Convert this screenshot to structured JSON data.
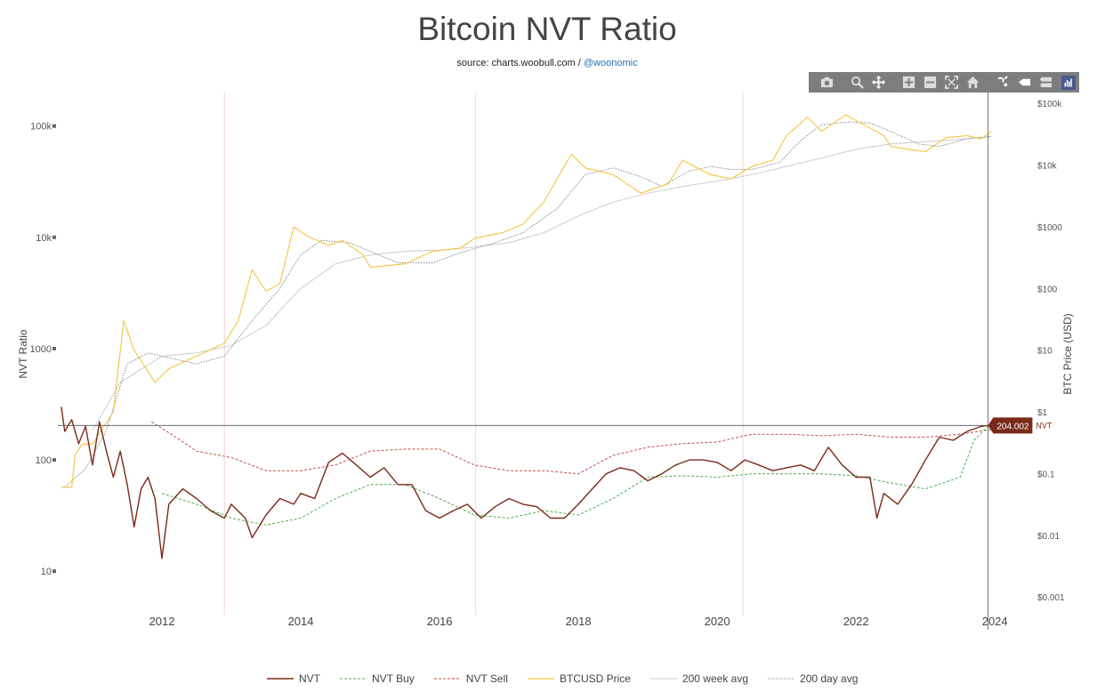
{
  "title": "Bitcoin NVT Ratio",
  "subtitle": {
    "source_text": "source: charts.woobull.com / ",
    "handle": "@woonomic"
  },
  "toolbar": {
    "icons": [
      "camera-icon",
      "zoom-icon",
      "pan-icon",
      "zoom-in-icon",
      "zoom-out-icon",
      "autoscale-icon",
      "home-icon",
      "spike-lines-icon",
      "hover-closest-icon",
      "hover-compare-icon",
      "plotly-logo-icon"
    ]
  },
  "chart_data": {
    "type": "line",
    "title": "Bitcoin NVT Ratio",
    "y_left": {
      "label": "NVT Ratio",
      "scale": "log",
      "range": [
        4,
        200000
      ],
      "ticks": [
        "10",
        "100",
        "1000",
        "10k",
        "100k"
      ]
    },
    "y_right": {
      "label": "BTC Price (USD)",
      "scale": "log",
      "range": [
        0.0005,
        150000
      ],
      "ticks": [
        "$0.001",
        "$0.01",
        "$0.1",
        "$1",
        "$10",
        "$100",
        "$1000",
        "$10k",
        "$100k"
      ]
    },
    "x": {
      "ticks": [
        "2012",
        "2014",
        "2016",
        "2018",
        "2020",
        "2022",
        "2024"
      ],
      "range": [
        2010.5,
        2024.6
      ]
    },
    "halvings": [
      2012.9,
      2016.52,
      2020.37
    ],
    "hover": {
      "value": "204.002",
      "series": "NVT",
      "x": 2023.9
    },
    "legend": [
      "NVT",
      "NVT Buy",
      "NVT Sell",
      "BTCUSD Price",
      "200 week avg",
      "200 day avg"
    ],
    "colors": {
      "nvt": "#7a2a1a",
      "nvt_buy": "#4caf50",
      "nvt_sell": "#c0504d",
      "price": "#f4c542",
      "week200": "#cccccc",
      "day200": "#888888"
    },
    "series": [
      {
        "name": "NVT",
        "points": [
          [
            2010.55,
            300
          ],
          [
            2010.6,
            180
          ],
          [
            2010.7,
            230
          ],
          [
            2010.8,
            140
          ],
          [
            2010.9,
            200
          ],
          [
            2011.0,
            90
          ],
          [
            2011.1,
            220
          ],
          [
            2011.2,
            120
          ],
          [
            2011.3,
            70
          ],
          [
            2011.4,
            120
          ],
          [
            2011.5,
            60
          ],
          [
            2011.6,
            25
          ],
          [
            2011.7,
            55
          ],
          [
            2011.8,
            70
          ],
          [
            2011.9,
            45
          ],
          [
            2012.0,
            13
          ],
          [
            2012.1,
            40
          ],
          [
            2012.3,
            55
          ],
          [
            2012.5,
            45
          ],
          [
            2012.7,
            35
          ],
          [
            2012.9,
            30
          ],
          [
            2013.0,
            40
          ],
          [
            2013.2,
            30
          ],
          [
            2013.3,
            20
          ],
          [
            2013.5,
            32
          ],
          [
            2013.7,
            45
          ],
          [
            2013.9,
            40
          ],
          [
            2014.0,
            50
          ],
          [
            2014.2,
            45
          ],
          [
            2014.4,
            95
          ],
          [
            2014.6,
            115
          ],
          [
            2014.8,
            90
          ],
          [
            2015.0,
            70
          ],
          [
            2015.2,
            85
          ],
          [
            2015.4,
            60
          ],
          [
            2015.6,
            60
          ],
          [
            2015.8,
            35
          ],
          [
            2016.0,
            30
          ],
          [
            2016.2,
            35
          ],
          [
            2016.4,
            40
          ],
          [
            2016.6,
            30
          ],
          [
            2016.8,
            38
          ],
          [
            2017.0,
            45
          ],
          [
            2017.2,
            40
          ],
          [
            2017.4,
            38
          ],
          [
            2017.6,
            30
          ],
          [
            2017.8,
            30
          ],
          [
            2018.0,
            40
          ],
          [
            2018.2,
            55
          ],
          [
            2018.4,
            75
          ],
          [
            2018.6,
            85
          ],
          [
            2018.8,
            80
          ],
          [
            2019.0,
            65
          ],
          [
            2019.2,
            75
          ],
          [
            2019.4,
            90
          ],
          [
            2019.6,
            100
          ],
          [
            2019.8,
            100
          ],
          [
            2020.0,
            95
          ],
          [
            2020.2,
            80
          ],
          [
            2020.4,
            100
          ],
          [
            2020.6,
            90
          ],
          [
            2020.8,
            80
          ],
          [
            2021.0,
            85
          ],
          [
            2021.2,
            90
          ],
          [
            2021.4,
            80
          ],
          [
            2021.6,
            130
          ],
          [
            2021.8,
            90
          ],
          [
            2022.0,
            70
          ],
          [
            2022.2,
            70
          ],
          [
            2022.3,
            30
          ],
          [
            2022.4,
            50
          ],
          [
            2022.6,
            40
          ],
          [
            2022.8,
            60
          ],
          [
            2023.0,
            100
          ],
          [
            2023.2,
            160
          ],
          [
            2023.4,
            150
          ],
          [
            2023.6,
            180
          ],
          [
            2023.8,
            200
          ],
          [
            2023.9,
            204
          ]
        ]
      },
      {
        "name": "NVT Buy",
        "points": [
          [
            2012.0,
            50
          ],
          [
            2012.5,
            40
          ],
          [
            2013.0,
            30
          ],
          [
            2013.5,
            26
          ],
          [
            2014.0,
            30
          ],
          [
            2014.5,
            45
          ],
          [
            2015.0,
            60
          ],
          [
            2015.5,
            60
          ],
          [
            2016.0,
            45
          ],
          [
            2016.5,
            32
          ],
          [
            2017.0,
            30
          ],
          [
            2017.5,
            35
          ],
          [
            2018.0,
            32
          ],
          [
            2018.5,
            45
          ],
          [
            2019.0,
            70
          ],
          [
            2019.5,
            72
          ],
          [
            2020.0,
            70
          ],
          [
            2020.5,
            75
          ],
          [
            2021.0,
            75
          ],
          [
            2021.5,
            75
          ],
          [
            2022.0,
            72
          ],
          [
            2022.5,
            62
          ],
          [
            2023.0,
            55
          ],
          [
            2023.5,
            70
          ],
          [
            2023.7,
            150
          ],
          [
            2024.0,
            230
          ]
        ]
      },
      {
        "name": "NVT Sell",
        "points": [
          [
            2011.85,
            220
          ],
          [
            2012.2,
            160
          ],
          [
            2012.5,
            120
          ],
          [
            2013.0,
            105
          ],
          [
            2013.5,
            80
          ],
          [
            2014.0,
            80
          ],
          [
            2014.5,
            90
          ],
          [
            2015.0,
            120
          ],
          [
            2015.5,
            125
          ],
          [
            2016.0,
            125
          ],
          [
            2016.5,
            90
          ],
          [
            2017.0,
            80
          ],
          [
            2017.5,
            80
          ],
          [
            2018.0,
            75
          ],
          [
            2018.5,
            110
          ],
          [
            2019.0,
            130
          ],
          [
            2019.5,
            140
          ],
          [
            2020.0,
            145
          ],
          [
            2020.5,
            170
          ],
          [
            2021.0,
            170
          ],
          [
            2021.5,
            165
          ],
          [
            2022.0,
            170
          ],
          [
            2022.5,
            160
          ],
          [
            2023.0,
            160
          ],
          [
            2023.5,
            170
          ],
          [
            2024.0,
            190
          ]
        ]
      },
      {
        "name": "BTCUSD Price",
        "points": [
          [
            2010.55,
            0.06
          ],
          [
            2010.7,
            0.06
          ],
          [
            2010.75,
            0.2
          ],
          [
            2010.85,
            0.3
          ],
          [
            2011.0,
            0.3
          ],
          [
            2011.3,
            1
          ],
          [
            2011.45,
            30
          ],
          [
            2011.6,
            10
          ],
          [
            2011.9,
            3
          ],
          [
            2012.1,
            5
          ],
          [
            2012.5,
            8
          ],
          [
            2012.9,
            13
          ],
          [
            2013.1,
            30
          ],
          [
            2013.3,
            200
          ],
          [
            2013.5,
            90
          ],
          [
            2013.7,
            120
          ],
          [
            2013.9,
            1000
          ],
          [
            2014.1,
            700
          ],
          [
            2014.4,
            500
          ],
          [
            2014.6,
            600
          ],
          [
            2014.9,
            350
          ],
          [
            2015.0,
            220
          ],
          [
            2015.5,
            250
          ],
          [
            2015.9,
            400
          ],
          [
            2016.3,
            450
          ],
          [
            2016.5,
            650
          ],
          [
            2016.9,
            800
          ],
          [
            2017.2,
            1100
          ],
          [
            2017.5,
            2500
          ],
          [
            2017.9,
            15000
          ],
          [
            2018.1,
            9000
          ],
          [
            2018.5,
            7000
          ],
          [
            2018.9,
            3500
          ],
          [
            2019.3,
            5000
          ],
          [
            2019.5,
            12000
          ],
          [
            2019.9,
            7000
          ],
          [
            2020.2,
            6000
          ],
          [
            2020.5,
            9500
          ],
          [
            2020.8,
            12000
          ],
          [
            2021.0,
            30000
          ],
          [
            2021.3,
            60000
          ],
          [
            2021.5,
            35000
          ],
          [
            2021.85,
            65000
          ],
          [
            2022.2,
            40000
          ],
          [
            2022.4,
            30000
          ],
          [
            2022.5,
            20000
          ],
          [
            2022.9,
            17000
          ],
          [
            2023.0,
            16500
          ],
          [
            2023.3,
            28000
          ],
          [
            2023.6,
            30000
          ],
          [
            2023.8,
            26500
          ],
          [
            2023.95,
            35000
          ]
        ]
      },
      {
        "name": "200 week avg",
        "points": [
          [
            2011.0,
            0.5
          ],
          [
            2011.4,
            3
          ],
          [
            2012.0,
            8
          ],
          [
            2012.5,
            9
          ],
          [
            2013.0,
            12
          ],
          [
            2013.5,
            25
          ],
          [
            2014.0,
            100
          ],
          [
            2014.5,
            250
          ],
          [
            2015.0,
            350
          ],
          [
            2015.5,
            400
          ],
          [
            2016.0,
            420
          ],
          [
            2016.5,
            470
          ],
          [
            2017.0,
            550
          ],
          [
            2017.5,
            800
          ],
          [
            2018.0,
            1500
          ],
          [
            2018.5,
            2500
          ],
          [
            2019.0,
            3500
          ],
          [
            2019.5,
            4500
          ],
          [
            2020.0,
            5500
          ],
          [
            2020.5,
            7000
          ],
          [
            2021.0,
            9500
          ],
          [
            2021.5,
            13000
          ],
          [
            2022.0,
            18000
          ],
          [
            2022.5,
            22000
          ],
          [
            2023.0,
            24000
          ],
          [
            2023.5,
            26000
          ],
          [
            2023.95,
            29000
          ]
        ]
      },
      {
        "name": "200 day avg",
        "points": [
          [
            2010.6,
            0.06
          ],
          [
            2010.9,
            0.12
          ],
          [
            2011.2,
            0.5
          ],
          [
            2011.5,
            6
          ],
          [
            2011.8,
            9
          ],
          [
            2012.0,
            8
          ],
          [
            2012.5,
            6
          ],
          [
            2012.9,
            8
          ],
          [
            2013.3,
            30
          ],
          [
            2013.7,
            100
          ],
          [
            2014.0,
            350
          ],
          [
            2014.3,
            600
          ],
          [
            2014.7,
            550
          ],
          [
            2015.0,
            400
          ],
          [
            2015.4,
            260
          ],
          [
            2015.9,
            260
          ],
          [
            2016.3,
            380
          ],
          [
            2016.8,
            550
          ],
          [
            2017.2,
            800
          ],
          [
            2017.7,
            2000
          ],
          [
            2018.1,
            7000
          ],
          [
            2018.5,
            9000
          ],
          [
            2018.9,
            6500
          ],
          [
            2019.2,
            4500
          ],
          [
            2019.6,
            8000
          ],
          [
            2019.9,
            9500
          ],
          [
            2020.2,
            8500
          ],
          [
            2020.5,
            8500
          ],
          [
            2020.9,
            11000
          ],
          [
            2021.2,
            25000
          ],
          [
            2021.5,
            45000
          ],
          [
            2021.9,
            50000
          ],
          [
            2022.2,
            48000
          ],
          [
            2022.5,
            35000
          ],
          [
            2022.9,
            22000
          ],
          [
            2023.2,
            20000
          ],
          [
            2023.6,
            27000
          ],
          [
            2023.95,
            29000
          ]
        ]
      }
    ]
  }
}
